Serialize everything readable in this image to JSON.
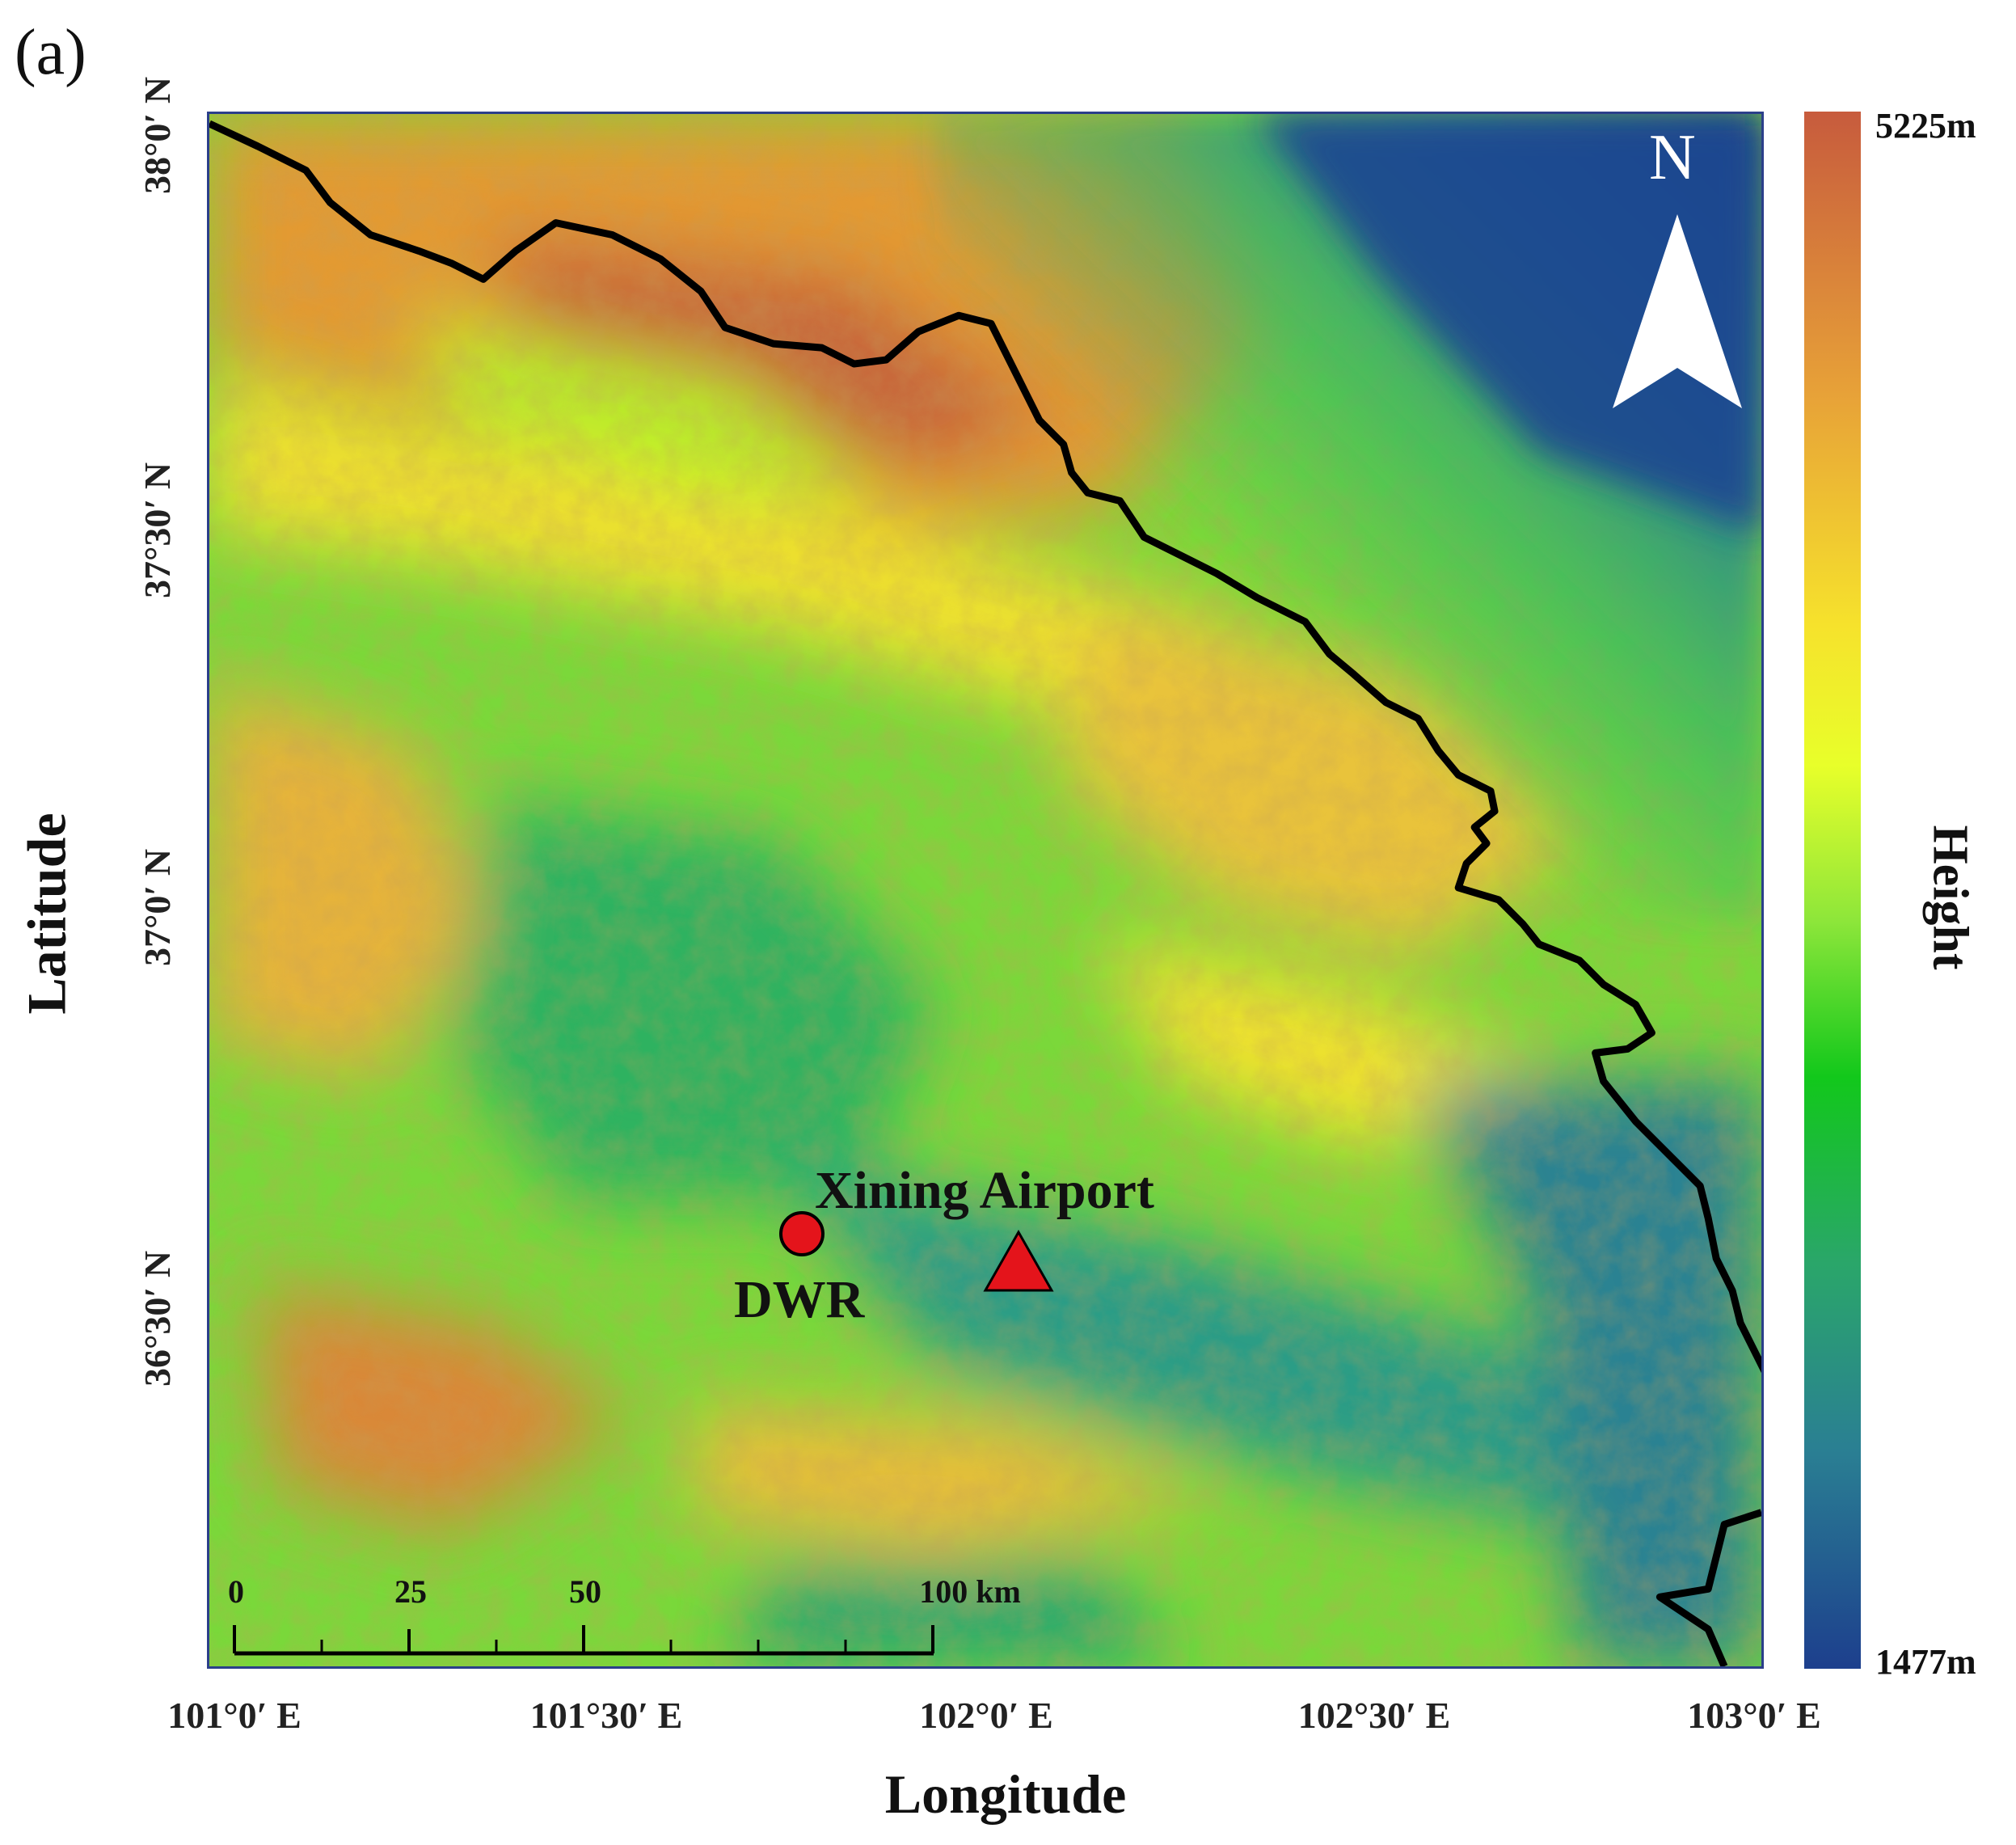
{
  "panel_label": "(a)",
  "map": {
    "latitude_ticks": [
      "38°0′ N",
      "37°30′ N",
      "37°0′ N",
      "36°30′ N"
    ],
    "longitude_ticks": [
      "101°0′ E",
      "101°30′ E",
      "102°0′ E",
      "102°30′ E",
      "103°0′ E"
    ],
    "xlabel": "Longitude",
    "ylabel": "Latitude",
    "north_arrow_label": "N",
    "markers": {
      "dwr": {
        "label": "DWR",
        "symbol": "red-circle",
        "color": "#e4141b"
      },
      "airport": {
        "label": "Xining Airport",
        "symbol": "red-triangle",
        "color": "#e4141b"
      }
    },
    "scale_bar": {
      "labels": [
        "0",
        "25",
        "50",
        "100 km"
      ]
    },
    "boundary_color": "#000000"
  },
  "colorbar": {
    "title": "Height",
    "max_label": "5225m",
    "min_label": "1477m",
    "colors": [
      "#c75b3d",
      "#e7a138",
      "#f6e22c",
      "#e8ff2a",
      "#12c81b",
      "#2a7f93",
      "#1d3f8d"
    ]
  }
}
